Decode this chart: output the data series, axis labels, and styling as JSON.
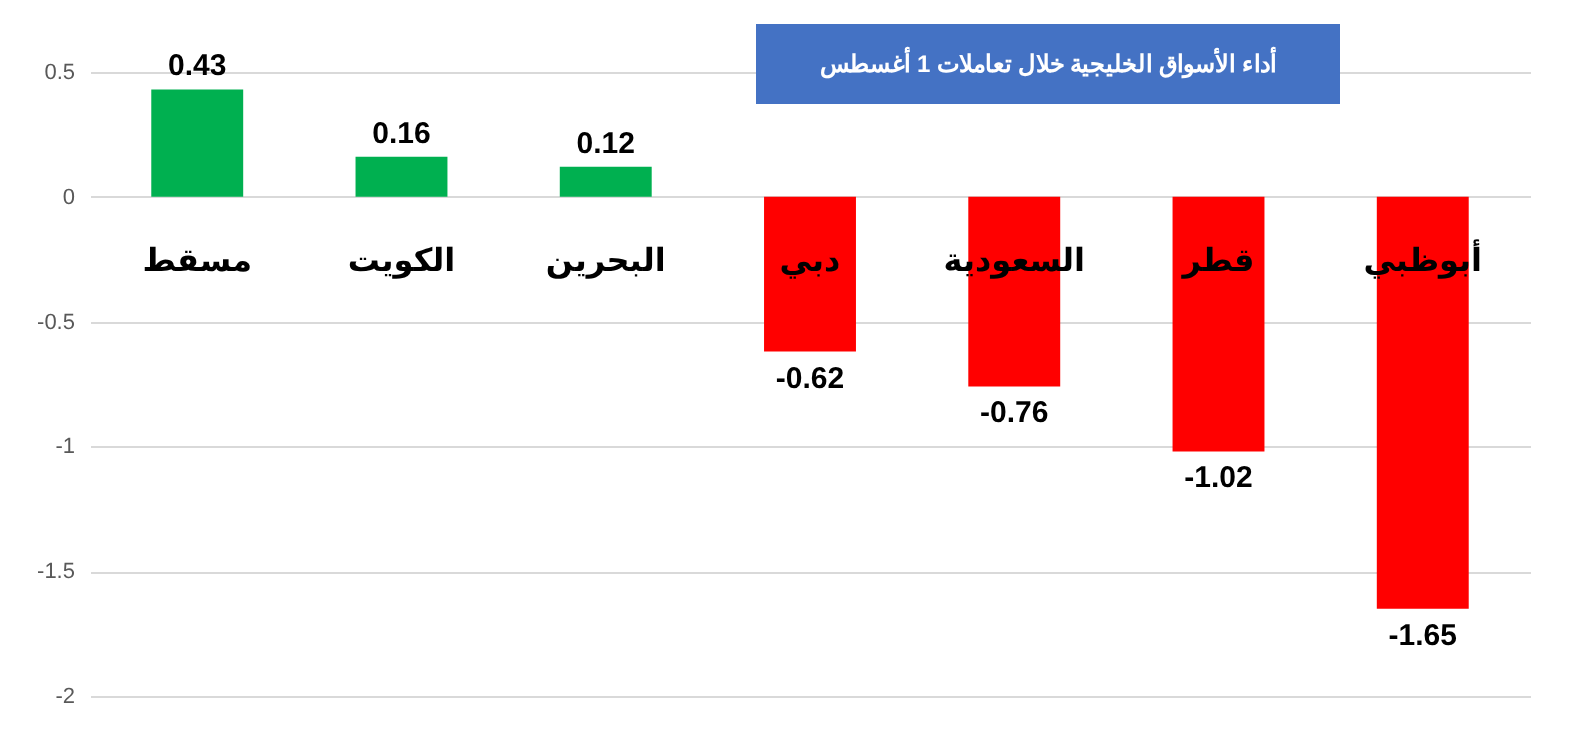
{
  "chart_data": {
    "type": "bar",
    "title": "أداء الأسواق الخليجية خلال تعاملات 1 أغسطس",
    "categories": [
      "مسقط",
      "الكويت",
      "البحرين",
      "دبي",
      "السعودية",
      "قطر",
      "أبوظبي"
    ],
    "values": [
      0.43,
      0.16,
      0.12,
      -0.62,
      -0.76,
      -1.02,
      -1.65
    ],
    "colors": [
      "#00b050",
      "#00b050",
      "#00b050",
      "#ff0000",
      "#ff0000",
      "#ff0000",
      "#ff0000"
    ],
    "ylim": [
      -2,
      0.5
    ],
    "yticks": [
      -2,
      -1.5,
      -1,
      -0.5,
      0,
      0.5
    ],
    "grid": "y",
    "data_labels": true
  }
}
